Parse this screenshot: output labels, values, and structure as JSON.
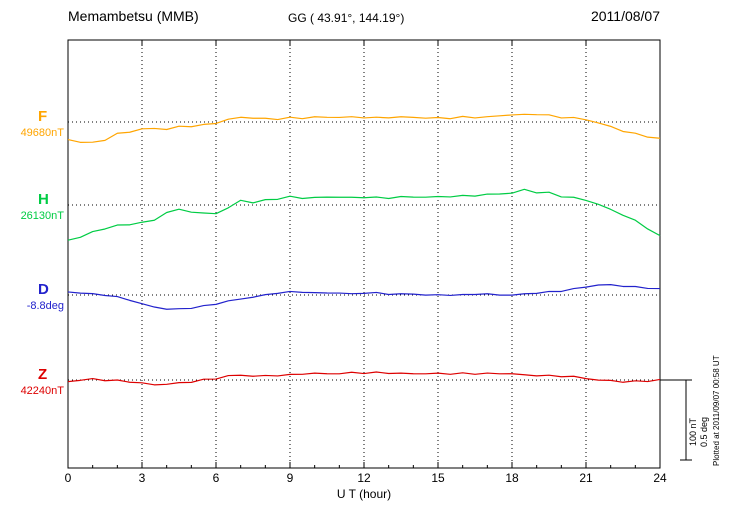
{
  "header": {
    "title": "Memambetsu (MMB)",
    "coords": "GG ( 43.91°, 144.19°)",
    "date": "2011/08/07"
  },
  "scale_bar": {
    "nt_label": "100 nT",
    "deg_label": "0.5 deg"
  },
  "footer_note": "Plotted at 2011/09/07 00:58 UT",
  "chart_data": {
    "type": "line",
    "title": "Memambetsu (MMB)",
    "subtitle": "GG ( 43.91°, 144.19°)",
    "date": "2011/08/07",
    "x": {
      "label": "U T (hour)",
      "min": 0,
      "max": 24,
      "step_hours": 0.5,
      "ticks": [
        0,
        3,
        6,
        9,
        12,
        15,
        18,
        21,
        24
      ]
    },
    "scale_bar": {
      "nT_per_div": 100,
      "deg_per_div": 0.5
    },
    "grid": "dotted vertical at 3h intervals, dotted horizontal at each component baseline",
    "series": [
      {
        "name": "F",
        "unit": "nT",
        "base_label": "49680nT",
        "base_value": 49680,
        "color": "#FFA500",
        "offsets": [
          -22,
          -25,
          -26,
          -22,
          -15,
          -12,
          -9,
          -8,
          -9,
          -6,
          -5,
          -4,
          -1,
          3,
          6,
          5,
          4,
          4,
          5,
          5,
          6,
          6,
          6,
          6,
          6,
          5,
          6,
          6,
          6,
          5,
          5,
          5,
          6,
          6,
          6,
          8,
          9,
          9,
          10,
          8,
          6,
          5,
          3,
          -1,
          -6,
          -11,
          -15,
          -18,
          -21
        ]
      },
      {
        "name": "H",
        "unit": "nT",
        "base_label": "26130nT",
        "base_value": 26130,
        "color": "#00CC44",
        "offsets": [
          -44,
          -40,
          -34,
          -29,
          -26,
          -24,
          -22,
          -19,
          -9,
          -6,
          -8,
          -11,
          -10,
          -4,
          6,
          3,
          6,
          8,
          10,
          9,
          9,
          10,
          10,
          9,
          10,
          9,
          9,
          10,
          10,
          10,
          10,
          11,
          11,
          12,
          13,
          14,
          15,
          19,
          16,
          15,
          11,
          9,
          6,
          1,
          -6,
          -12,
          -20,
          -29,
          -39
        ]
      },
      {
        "name": "D",
        "unit": "deg",
        "base_label": "-8.8deg",
        "base_value": -8.8,
        "color": "#2222CC",
        "offsets": [
          0.019,
          0.013,
          0.006,
          0,
          -0.013,
          -0.031,
          -0.056,
          -0.075,
          -0.088,
          -0.088,
          -0.081,
          -0.069,
          -0.056,
          -0.038,
          -0.025,
          -0.013,
          0,
          0.013,
          0.019,
          0.019,
          0.013,
          0.013,
          0.013,
          0.006,
          0.013,
          0.013,
          0.006,
          0.006,
          0.006,
          0,
          0,
          0,
          0,
          0.006,
          0.006,
          0,
          0,
          0.006,
          0.013,
          0.019,
          0.025,
          0.038,
          0.05,
          0.063,
          0.063,
          0.056,
          0.05,
          0.044,
          0.038
        ]
      },
      {
        "name": "Z",
        "unit": "nT",
        "base_label": "42240nT",
        "base_value": 42240,
        "color": "#DD0000",
        "offsets": [
          -2,
          0,
          1,
          0,
          -1,
          -2,
          -4,
          -6,
          -5,
          -4,
          -2,
          0,
          2,
          5,
          6,
          5,
          5,
          6,
          6,
          8,
          8,
          8,
          8,
          9,
          9,
          9,
          9,
          8,
          8,
          8,
          8,
          8,
          8,
          8,
          8,
          8,
          8,
          6,
          6,
          5,
          5,
          4,
          2,
          0,
          -1,
          -2,
          -2,
          -1,
          0
        ]
      }
    ]
  }
}
